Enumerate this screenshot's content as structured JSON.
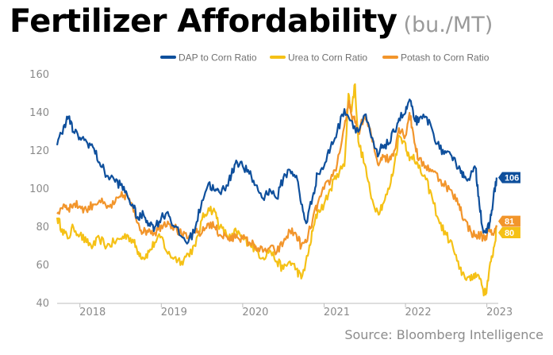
{
  "header": {
    "title": "Fertilizer Affordability",
    "subtitle": "(bu./MT)"
  },
  "source": "Source: Bloomberg Intelligence",
  "chart_data": {
    "type": "line",
    "title": "Fertilizer Affordability",
    "subtitle": "(bu./MT)",
    "xlabel": "",
    "ylabel": "",
    "ylim": [
      40,
      160
    ],
    "yticks": [
      40,
      60,
      80,
      100,
      120,
      140,
      160
    ],
    "xlim": [
      2017.72,
      2023.14
    ],
    "xticks": [
      {
        "label": "2018",
        "x": 2018.0
      },
      {
        "label": "2019",
        "x": 2019.0
      },
      {
        "label": "2020",
        "x": 2020.0
      },
      {
        "label": "2021",
        "x": 2021.0
      },
      {
        "label": "2022",
        "x": 2022.0
      },
      {
        "label": "2023",
        "x": 2023.0
      }
    ],
    "grid": false,
    "legend_position": "top-right",
    "series": [
      {
        "name": "DAP to Corn Ratio",
        "color": "#0e4f9c",
        "end_label": "106",
        "points": [
          [
            2017.72,
            123
          ],
          [
            2017.8,
            133
          ],
          [
            2017.86,
            138
          ],
          [
            2017.92,
            130
          ],
          [
            2018.0,
            127
          ],
          [
            2018.08,
            125
          ],
          [
            2018.16,
            122
          ],
          [
            2018.24,
            114
          ],
          [
            2018.33,
            107
          ],
          [
            2018.42,
            105
          ],
          [
            2018.5,
            102
          ],
          [
            2018.58,
            97
          ],
          [
            2018.66,
            90
          ],
          [
            2018.72,
            84
          ],
          [
            2018.78,
            87
          ],
          [
            2018.85,
            82
          ],
          [
            2018.92,
            80
          ],
          [
            2019.0,
            85
          ],
          [
            2019.08,
            88
          ],
          [
            2019.16,
            80
          ],
          [
            2019.25,
            75
          ],
          [
            2019.33,
            72
          ],
          [
            2019.42,
            80
          ],
          [
            2019.5,
            94
          ],
          [
            2019.58,
            103
          ],
          [
            2019.66,
            99
          ],
          [
            2019.72,
            98
          ],
          [
            2019.8,
            102
          ],
          [
            2019.86,
            107
          ],
          [
            2019.92,
            115
          ],
          [
            2020.0,
            112
          ],
          [
            2020.08,
            108
          ],
          [
            2020.16,
            102
          ],
          [
            2020.25,
            95
          ],
          [
            2020.33,
            100
          ],
          [
            2020.42,
            95
          ],
          [
            2020.5,
            106
          ],
          [
            2020.58,
            110
          ],
          [
            2020.66,
            107
          ],
          [
            2020.72,
            92
          ],
          [
            2020.78,
            82
          ],
          [
            2020.86,
            96
          ],
          [
            2020.92,
            108
          ],
          [
            2021.0,
            112
          ],
          [
            2021.08,
            122
          ],
          [
            2021.16,
            130
          ],
          [
            2021.25,
            142
          ],
          [
            2021.33,
            136
          ],
          [
            2021.42,
            130
          ],
          [
            2021.5,
            139
          ],
          [
            2021.58,
            127
          ],
          [
            2021.66,
            117
          ],
          [
            2021.72,
            123
          ],
          [
            2021.8,
            124
          ],
          [
            2021.86,
            130
          ],
          [
            2021.92,
            137
          ],
          [
            2022.0,
            140
          ],
          [
            2022.05,
            147
          ],
          [
            2022.1,
            138
          ],
          [
            2022.16,
            135
          ],
          [
            2022.25,
            138
          ],
          [
            2022.33,
            131
          ],
          [
            2022.42,
            121
          ],
          [
            2022.5,
            119
          ],
          [
            2022.58,
            115
          ],
          [
            2022.66,
            112
          ],
          [
            2022.72,
            106
          ],
          [
            2022.8,
            107
          ],
          [
            2022.86,
            111
          ],
          [
            2022.9,
            96
          ],
          [
            2022.95,
            79
          ],
          [
            2023.0,
            77
          ],
          [
            2023.04,
            83
          ],
          [
            2023.08,
            95
          ],
          [
            2023.12,
            106
          ]
        ]
      },
      {
        "name": "Urea to Corn Ratio",
        "color": "#f5c116",
        "end_label": "80",
        "points": [
          [
            2017.72,
            85
          ],
          [
            2017.78,
            79
          ],
          [
            2017.85,
            74
          ],
          [
            2017.92,
            80
          ],
          [
            2018.0,
            76
          ],
          [
            2018.08,
            72
          ],
          [
            2018.16,
            70
          ],
          [
            2018.24,
            74
          ],
          [
            2018.33,
            70
          ],
          [
            2018.42,
            72
          ],
          [
            2018.5,
            74
          ],
          [
            2018.58,
            76
          ],
          [
            2018.66,
            72
          ],
          [
            2018.72,
            67
          ],
          [
            2018.78,
            64
          ],
          [
            2018.85,
            67
          ],
          [
            2018.92,
            72
          ],
          [
            2019.0,
            75
          ],
          [
            2019.08,
            66
          ],
          [
            2019.16,
            64
          ],
          [
            2019.25,
            62
          ],
          [
            2019.33,
            66
          ],
          [
            2019.42,
            70
          ],
          [
            2019.5,
            84
          ],
          [
            2019.58,
            90
          ],
          [
            2019.66,
            88
          ],
          [
            2019.72,
            80
          ],
          [
            2019.8,
            76
          ],
          [
            2019.86,
            74
          ],
          [
            2019.92,
            78
          ],
          [
            2020.0,
            74
          ],
          [
            2020.08,
            72
          ],
          [
            2020.16,
            68
          ],
          [
            2020.25,
            64
          ],
          [
            2020.33,
            68
          ],
          [
            2020.42,
            62
          ],
          [
            2020.5,
            58
          ],
          [
            2020.58,
            62
          ],
          [
            2020.66,
            58
          ],
          [
            2020.72,
            53
          ],
          [
            2020.8,
            65
          ],
          [
            2020.86,
            78
          ],
          [
            2020.92,
            88
          ],
          [
            2021.0,
            92
          ],
          [
            2021.08,
            100
          ],
          [
            2021.16,
            108
          ],
          [
            2021.25,
            112
          ],
          [
            2021.3,
            150
          ],
          [
            2021.33,
            140
          ],
          [
            2021.38,
            155
          ],
          [
            2021.42,
            125
          ],
          [
            2021.5,
            113
          ],
          [
            2021.58,
            95
          ],
          [
            2021.66,
            88
          ],
          [
            2021.72,
            92
          ],
          [
            2021.8,
            100
          ],
          [
            2021.86,
            112
          ],
          [
            2021.92,
            128
          ],
          [
            2022.0,
            124
          ],
          [
            2022.05,
            115
          ],
          [
            2022.1,
            118
          ],
          [
            2022.16,
            111
          ],
          [
            2022.25,
            105
          ],
          [
            2022.33,
            95
          ],
          [
            2022.42,
            82
          ],
          [
            2022.5,
            76
          ],
          [
            2022.58,
            70
          ],
          [
            2022.66,
            58
          ],
          [
            2022.72,
            55
          ],
          [
            2022.8,
            52
          ],
          [
            2022.86,
            56
          ],
          [
            2022.92,
            53
          ],
          [
            2022.97,
            45
          ],
          [
            2023.0,
            48
          ],
          [
            2023.05,
            62
          ],
          [
            2023.1,
            72
          ],
          [
            2023.12,
            80
          ]
        ]
      },
      {
        "name": "Potash to Corn Ratio",
        "color": "#f2952b",
        "end_label": "81",
        "points": [
          [
            2017.72,
            87
          ],
          [
            2017.8,
            92
          ],
          [
            2017.86,
            90
          ],
          [
            2017.92,
            92
          ],
          [
            2018.0,
            91
          ],
          [
            2018.08,
            89
          ],
          [
            2018.16,
            92
          ],
          [
            2018.24,
            94
          ],
          [
            2018.33,
            90
          ],
          [
            2018.42,
            92
          ],
          [
            2018.5,
            96
          ],
          [
            2018.58,
            97
          ],
          [
            2018.66,
            88
          ],
          [
            2018.72,
            82
          ],
          [
            2018.78,
            77
          ],
          [
            2018.85,
            79
          ],
          [
            2018.92,
            77
          ],
          [
            2019.0,
            81
          ],
          [
            2019.08,
            83
          ],
          [
            2019.16,
            80
          ],
          [
            2019.25,
            76
          ],
          [
            2019.33,
            74
          ],
          [
            2019.42,
            77
          ],
          [
            2019.5,
            77
          ],
          [
            2019.58,
            82
          ],
          [
            2019.66,
            80
          ],
          [
            2019.72,
            76
          ],
          [
            2019.8,
            75
          ],
          [
            2019.86,
            73
          ],
          [
            2019.92,
            76
          ],
          [
            2020.0,
            74
          ],
          [
            2020.08,
            72
          ],
          [
            2020.16,
            70
          ],
          [
            2020.25,
            67
          ],
          [
            2020.33,
            69
          ],
          [
            2020.42,
            67
          ],
          [
            2020.5,
            72
          ],
          [
            2020.58,
            78
          ],
          [
            2020.66,
            76
          ],
          [
            2020.72,
            70
          ],
          [
            2020.78,
            72
          ],
          [
            2020.86,
            84
          ],
          [
            2020.92,
            92
          ],
          [
            2021.0,
            100
          ],
          [
            2021.08,
            105
          ],
          [
            2021.16,
            113
          ],
          [
            2021.25,
            133
          ],
          [
            2021.3,
            145
          ],
          [
            2021.33,
            140
          ],
          [
            2021.38,
            135
          ],
          [
            2021.42,
            130
          ],
          [
            2021.5,
            138
          ],
          [
            2021.58,
            128
          ],
          [
            2021.66,
            113
          ],
          [
            2021.72,
            118
          ],
          [
            2021.8,
            115
          ],
          [
            2021.86,
            120
          ],
          [
            2021.92,
            132
          ],
          [
            2022.0,
            128
          ],
          [
            2022.05,
            140
          ],
          [
            2022.1,
            128
          ],
          [
            2022.16,
            115
          ],
          [
            2022.25,
            112
          ],
          [
            2022.33,
            110
          ],
          [
            2022.42,
            105
          ],
          [
            2022.5,
            102
          ],
          [
            2022.58,
            97
          ],
          [
            2022.66,
            92
          ],
          [
            2022.72,
            84
          ],
          [
            2022.8,
            78
          ],
          [
            2022.86,
            75
          ],
          [
            2022.92,
            76
          ],
          [
            2022.97,
            74
          ],
          [
            2023.02,
            78
          ],
          [
            2023.06,
            76
          ],
          [
            2023.12,
            81
          ]
        ]
      }
    ]
  }
}
